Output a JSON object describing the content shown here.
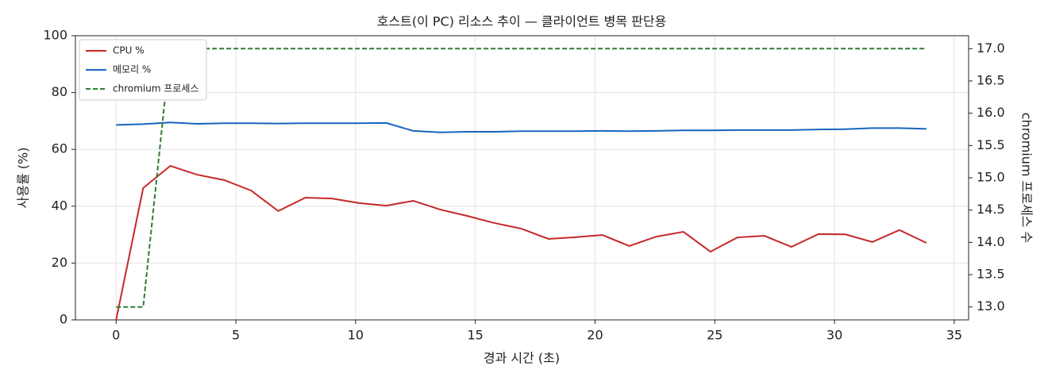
{
  "chart_data": {
    "type": "line",
    "title": "호스트(이 PC) 리소스 추이 — 클라이언트 병목 판단용",
    "x_label": "경과 시간 (초)",
    "y_label": "사용률 (%)",
    "y2_label": "chromium 프로세스 수",
    "x": [
      0,
      1.13,
      2.26,
      3.38,
      4.51,
      5.64,
      6.77,
      7.9,
      9.02,
      10.15,
      11.28,
      12.41,
      13.54,
      14.66,
      15.79,
      16.92,
      18.05,
      19.18,
      20.3,
      21.43,
      22.56,
      23.69,
      24.82,
      25.94,
      27.07,
      28.2,
      29.33,
      30.46,
      31.58,
      32.71,
      33.84
    ],
    "series": [
      {
        "name": "CPU %",
        "color": "#c62828",
        "dash": false,
        "values": [
          0,
          46.4,
          54.2,
          51.1,
          49.2,
          45.5,
          38.3,
          43,
          42.7,
          41.1,
          40.2,
          41.9,
          38.8,
          36.6,
          34.1,
          32.1,
          28.5,
          29.1,
          29.9,
          26,
          29.3,
          31,
          24,
          29,
          29.6,
          25.7,
          30.2,
          30.1,
          27.4,
          31.6,
          27.1
        ]
      },
      {
        "name": "메모리 %",
        "color": "#1565c0",
        "dash": false,
        "values": [
          68.6,
          68.9,
          69.5,
          69,
          69.2,
          69.2,
          69.1,
          69.2,
          69.2,
          69.2,
          69.3,
          66.5,
          66,
          66.2,
          66.2,
          66.4,
          66.4,
          66.4,
          66.5,
          66.4,
          66.5,
          66.7,
          66.7,
          66.8,
          66.8,
          66.8,
          67,
          67.1,
          67.5,
          67.5,
          67.2
        ]
      },
      {
        "name": "chromium 프로세스",
        "color": "#2e7d32",
        "dash": true,
        "axis": "y2",
        "values": [
          13,
          13,
          17,
          17,
          17,
          17,
          17,
          17,
          17,
          17,
          17,
          17,
          17,
          17,
          17,
          17,
          17,
          17,
          17,
          17,
          17,
          17,
          17,
          17,
          17,
          17,
          17,
          17,
          17,
          17,
          17
        ]
      }
    ],
    "xlim": [
      -1.7,
      35.6
    ],
    "xticks": [
      0,
      5,
      10,
      15,
      20,
      25,
      30,
      35
    ],
    "ylim": [
      0,
      100
    ],
    "yticks": [
      0,
      20,
      40,
      60,
      80,
      100
    ],
    "y2lim": [
      12.8,
      17.2
    ],
    "y2ticks": [
      {
        "value": 13,
        "label": "13.0"
      },
      13.5,
      {
        "value": 14,
        "label": "14.0"
      },
      14.5,
      {
        "value": 15,
        "label": "15.0"
      },
      15.5,
      {
        "value": 16,
        "label": "16.0"
      },
      16.5,
      {
        "value": 17,
        "label": "17.0"
      }
    ],
    "grid": true,
    "legend": "upper-left"
  }
}
